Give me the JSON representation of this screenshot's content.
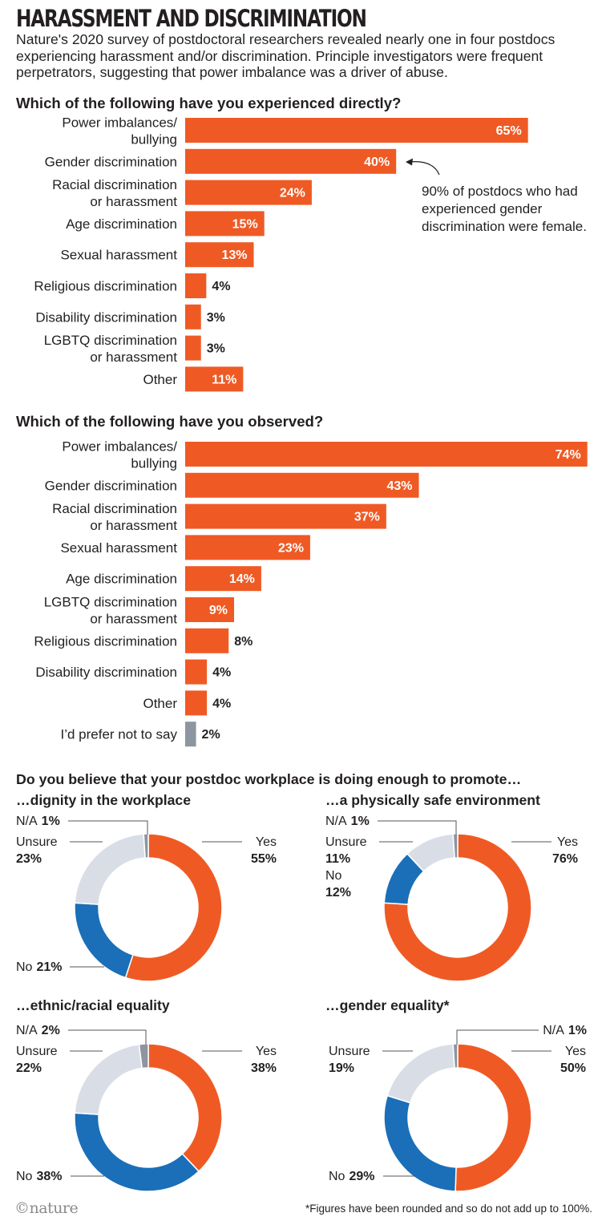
{
  "title": "HARASSMENT AND DISCRIMINATION",
  "intro": "Nature's 2020 survey of postdoctoral researchers revealed nearly one in four postdocs experiencing harassment and/or discrimination. Principle investigators were frequent perpetrators, suggesting that power imbalance was a driver of abuse.",
  "donut_section_title": "Do you believe that your postdoc workplace is doing enough to promote…",
  "annotation": "90% of postdocs who had experienced gender discrimination were female.",
  "footnote": "*Figures have been rounded and so do not add up to 100%.",
  "logo": "©nature",
  "colors": {
    "orange": "#ef5a24",
    "grey_bar": "#8c95a0",
    "blue": "#1a6fb8",
    "light": "#d9dee6",
    "na": "#8c95a0"
  },
  "chart_data": [
    {
      "type": "bar",
      "title": "Which of the following have you experienced directly?",
      "categories": [
        [
          "Power imbalances/",
          "bullying"
        ],
        [
          "Gender discrimination"
        ],
        [
          "Racial discrimination",
          "or harassment"
        ],
        [
          "Age discrimination"
        ],
        [
          "Sexual harassment"
        ],
        [
          "Religious discrimination"
        ],
        [
          "Disability discrimination"
        ],
        [
          "LGBTQ discrimination",
          "or harassment"
        ],
        [
          "Other"
        ]
      ],
      "values": [
        65,
        40,
        24,
        15,
        13,
        4,
        3,
        3,
        11
      ],
      "value_labels": [
        "65%",
        "40%",
        "24%",
        "15%",
        "13%",
        "4%",
        "3%",
        "3%",
        "11%"
      ],
      "highlight": [
        false,
        false,
        false,
        false,
        false,
        false,
        false,
        false,
        false
      ],
      "unit": "%"
    },
    {
      "type": "bar",
      "title": "Which of the following have you observed?",
      "categories": [
        [
          "Power imbalances/",
          "bullying"
        ],
        [
          "Gender discrimination"
        ],
        [
          "Racial discrimination",
          "or harassment"
        ],
        [
          "Sexual harassment"
        ],
        [
          "Age discrimination"
        ],
        [
          "LGBTQ discrimination",
          "or harassment"
        ],
        [
          "Religious discrimination"
        ],
        [
          "Disability discrimination"
        ],
        [
          "Other"
        ],
        [
          "I’d prefer not to say"
        ]
      ],
      "values": [
        74,
        43,
        37,
        23,
        14,
        9,
        8,
        4,
        4,
        2
      ],
      "value_labels": [
        "74%",
        "43%",
        "37%",
        "23%",
        "14%",
        "9%",
        "8%",
        "4%",
        "4%",
        "2%"
      ],
      "highlight": [
        false,
        false,
        false,
        false,
        false,
        false,
        false,
        false,
        false,
        true
      ],
      "unit": "%"
    },
    {
      "type": "pie",
      "title": "…dignity in the workplace",
      "slices": [
        {
          "label": "Yes",
          "value": 55,
          "text": "55%",
          "color": "#ef5a24"
        },
        {
          "label": "No",
          "value": 21,
          "text": "21%",
          "color": "#1a6fb8"
        },
        {
          "label": "Unsure",
          "value": 23,
          "text": "23%",
          "color": "#d9dee6"
        },
        {
          "label": "N/A",
          "value": 1,
          "text": "1%",
          "color": "#8c95a0"
        }
      ]
    },
    {
      "type": "pie",
      "title": "…a physically safe environment",
      "slices": [
        {
          "label": "Yes",
          "value": 76,
          "text": "76%",
          "color": "#ef5a24"
        },
        {
          "label": "No",
          "value": 12,
          "text": "12%",
          "color": "#1a6fb8"
        },
        {
          "label": "Unsure",
          "value": 11,
          "text": "11%",
          "color": "#d9dee6"
        },
        {
          "label": "N/A",
          "value": 1,
          "text": "1%",
          "color": "#8c95a0"
        }
      ]
    },
    {
      "type": "pie",
      "title": "…ethnic/racial equality",
      "slices": [
        {
          "label": "Yes",
          "value": 38,
          "text": "38%",
          "color": "#ef5a24"
        },
        {
          "label": "No",
          "value": 38,
          "text": "38%",
          "color": "#1a6fb8"
        },
        {
          "label": "Unsure",
          "value": 22,
          "text": "22%",
          "color": "#d9dee6"
        },
        {
          "label": "N/A",
          "value": 2,
          "text": "2%",
          "color": "#8c95a0"
        }
      ]
    },
    {
      "type": "pie",
      "title": "…gender equality*",
      "slices": [
        {
          "label": "Yes",
          "value": 50,
          "text": "50%",
          "color": "#ef5a24"
        },
        {
          "label": "No",
          "value": 29,
          "text": "29%",
          "color": "#1a6fb8"
        },
        {
          "label": "Unsure",
          "value": 19,
          "text": "19%",
          "color": "#d9dee6"
        },
        {
          "label": "N/A",
          "value": 1,
          "text": "1%",
          "color": "#8c95a0"
        }
      ]
    }
  ]
}
